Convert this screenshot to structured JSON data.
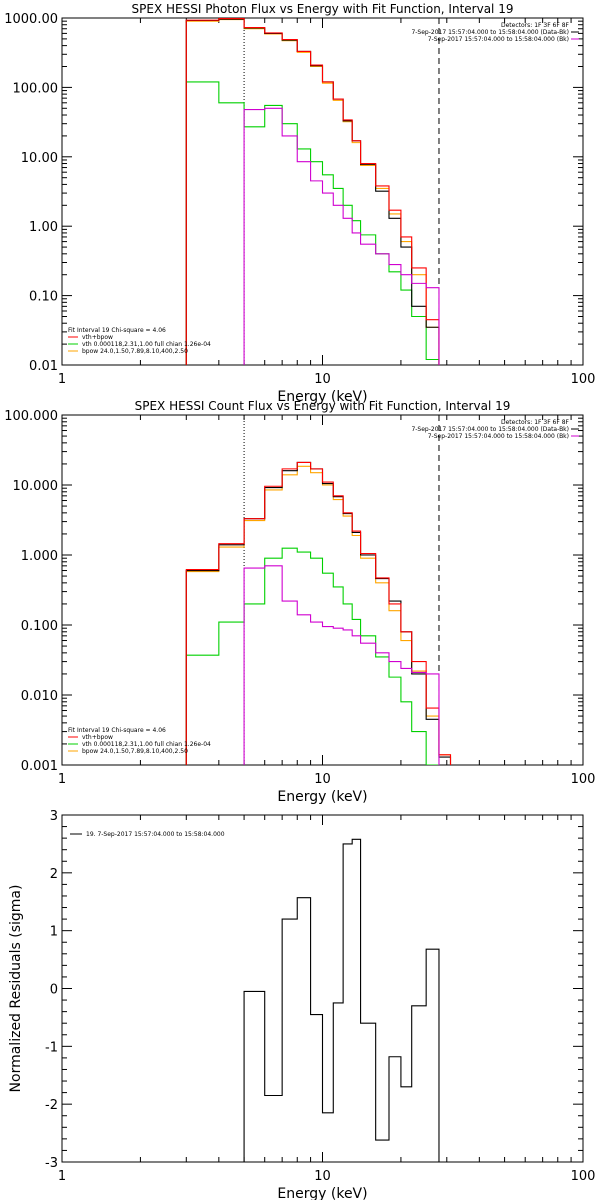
{
  "colors": {
    "data": "#000000",
    "model_sum": "#ff0000",
    "vth": "#00d000",
    "bpow": "#ffa500",
    "background": "#d000d0"
  },
  "chart_data": [
    {
      "type": "line",
      "title": "SPEX HESSI Photon Flux vs Energy with Fit Function, Interval 19",
      "xlabel": "Energy (keV)",
      "ylabel": "",
      "xscale": "log",
      "yscale": "log",
      "xlim": [
        1,
        100
      ],
      "ylim": [
        0.01,
        1000
      ],
      "xticks": [
        1,
        10,
        100
      ],
      "xtick_labels": [
        "1",
        "10",
        "100"
      ],
      "yticks": [
        0.01,
        0.1,
        1,
        10,
        100,
        1000
      ],
      "ytick_labels": [
        "0.01",
        "0.10",
        "1.00",
        "10.00",
        "100.00",
        "1000.00"
      ],
      "top_right_text": [
        "Detectors: 1F 3F 6F 8F",
        "7-Sep-2017 15:57:04.000 to 15:58:04.000 (Data-Bk)",
        "7-Sep-2017 15:57:04.000 to 15:58:04.000 (Bk)"
      ],
      "legend_text": [
        "Fit Interval 19   Chi-square = 4.06",
        "vth+bpow",
        "vth 0.000118,2.31,1.00  full chian 1.26e-04",
        "bpow 24.0,1.50,7.89,8.10,400,2.50"
      ],
      "edges": [
        3,
        4,
        5,
        6,
        7,
        8,
        9,
        10,
        11,
        12,
        13,
        14,
        16,
        18,
        20,
        22,
        25,
        28
      ],
      "fit_range": [
        5,
        28
      ],
      "series": [
        {
          "key": "vth",
          "values": [
            120,
            60,
            27,
            55,
            30,
            13,
            8.5,
            5.5,
            3.5,
            2.0,
            1.2,
            0.75,
            0.4,
            0.22,
            0.12,
            0.05,
            0.012
          ]
        },
        {
          "key": "bpow",
          "values": [
            900,
            950,
            700,
            590,
            470,
            320,
            200,
            115,
            65,
            32,
            16,
            7.5,
            3.5,
            1.5,
            0.6,
            0.2,
            0.035
          ]
        },
        {
          "key": "data",
          "values": [
            920,
            960,
            720,
            600,
            480,
            330,
            205,
            120,
            68,
            33,
            17,
            7.8,
            3.2,
            1.3,
            0.5,
            0.07,
            0.035
          ]
        },
        {
          "key": "model_sum",
          "values": [
            930,
            980,
            730,
            610,
            490,
            330,
            210,
            120,
            68,
            34,
            17,
            8.0,
            3.8,
            1.7,
            0.7,
            0.25,
            0.045
          ]
        },
        {
          "key": "background",
          "values": [
            null,
            null,
            48,
            50,
            20,
            8.5,
            4.5,
            3.0,
            2.0,
            1.3,
            0.8,
            0.55,
            0.4,
            0.28,
            0.2,
            0.15,
            0.13
          ]
        }
      ]
    },
    {
      "type": "line",
      "title": "SPEX HESSI Count Flux vs Energy with Fit Function, Interval 19",
      "xlabel": "Energy (keV)",
      "ylabel": "",
      "xscale": "log",
      "yscale": "log",
      "xlim": [
        1,
        100
      ],
      "ylim": [
        0.001,
        100
      ],
      "xticks": [
        1,
        10,
        100
      ],
      "xtick_labels": [
        "1",
        "10",
        "100"
      ],
      "yticks": [
        0.001,
        0.01,
        0.1,
        1,
        10,
        100
      ],
      "ytick_labels": [
        "0.001",
        "0.010",
        "0.100",
        "1.000",
        "10.000",
        "100.000"
      ],
      "top_right_text": [
        "Detectors: 1F 3F 6F 8F",
        "7-Sep-2017 15:57:04.000 to 15:58:04.000 (Data-Bk)",
        "7-Sep-2017 15:57:04.000 to 15:58:04.000 (Bk)"
      ],
      "legend_text": [
        "Fit Interval 19   Chi-square = 4.06",
        "vth+bpow",
        "vth 0.000118,2.31,1.00  full chian 1.26e-04",
        "bpow 24.0,1.50,7.89,8.10,400,2.50"
      ],
      "edges": [
        3,
        4,
        5,
        6,
        7,
        8,
        9,
        10,
        11,
        12,
        13,
        14,
        16,
        18,
        20,
        22,
        25,
        28,
        31
      ],
      "fit_range": [
        5,
        28
      ],
      "series": [
        {
          "key": "vth",
          "values": [
            0.037,
            0.11,
            0.2,
            0.9,
            1.25,
            1.1,
            0.9,
            0.55,
            0.35,
            0.2,
            0.12,
            0.07,
            0.035,
            0.018,
            0.008,
            0.003,
            0.001,
            null
          ]
        },
        {
          "key": "bpow",
          "values": [
            0.58,
            1.3,
            3.1,
            8.5,
            14,
            18.5,
            15,
            10,
            6.2,
            3.6,
            1.9,
            0.9,
            0.4,
            0.16,
            0.06,
            0.022,
            0.005,
            0.0014
          ]
        },
        {
          "key": "data",
          "values": [
            0.6,
            1.4,
            3.3,
            9.2,
            16,
            21,
            17,
            10.5,
            6.8,
            3.9,
            2.1,
            1.0,
            0.46,
            0.22,
            0.08,
            0.02,
            0.0045,
            0.0013
          ]
        },
        {
          "key": "model_sum",
          "values": [
            0.62,
            1.45,
            3.3,
            9.6,
            17,
            21,
            17,
            11,
            7.0,
            4.0,
            2.2,
            1.05,
            0.47,
            0.2,
            0.08,
            0.03,
            0.0065,
            0.0014
          ]
        },
        {
          "key": "background",
          "values": [
            null,
            null,
            0.65,
            0.7,
            0.22,
            0.14,
            0.11,
            0.095,
            0.09,
            0.085,
            0.07,
            0.055,
            0.04,
            0.03,
            0.024,
            0.021,
            0.02,
            null
          ]
        }
      ]
    },
    {
      "type": "line",
      "title": "",
      "xlabel": "Energy (keV)",
      "ylabel": "Normalized Residuals (sigma)",
      "xscale": "log",
      "yscale": "linear",
      "xlim": [
        1,
        100
      ],
      "ylim": [
        -3,
        3
      ],
      "xticks": [
        1,
        10,
        100
      ],
      "xtick_labels": [
        "1",
        "10",
        "100"
      ],
      "yticks": [
        -3,
        -2,
        -1,
        0,
        1,
        2,
        3
      ],
      "ytick_labels": [
        "-3",
        "-2",
        "-1",
        "0",
        "1",
        "2",
        "3"
      ],
      "legend_text": [
        "19.  7-Sep-2017 15:57:04.000 to 15:58:04.000"
      ],
      "edges": [
        5,
        6,
        7,
        8,
        9,
        10,
        11,
        12,
        13,
        14,
        16,
        18,
        20,
        22,
        25,
        28
      ],
      "series": [
        {
          "key": "data",
          "values": [
            -0.05,
            -1.85,
            1.2,
            1.57,
            -0.45,
            -2.15,
            -0.25,
            2.5,
            2.58,
            -0.6,
            -2.62,
            -1.18,
            -1.7,
            -0.3,
            0.68
          ]
        }
      ]
    }
  ]
}
